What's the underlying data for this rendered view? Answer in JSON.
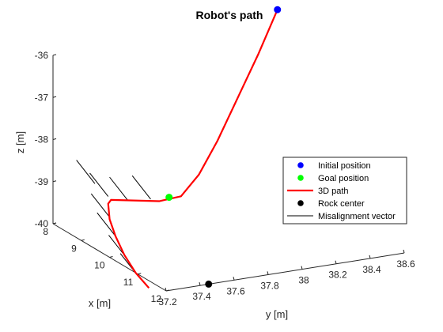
{
  "chart_data": {
    "type": "line3d",
    "title": "Robot's path",
    "xlabel": "x [m]",
    "ylabel": "y [m]",
    "zlabel": "z [m]",
    "xlim": [
      8,
      12
    ],
    "ylim": [
      37.2,
      38.6
    ],
    "zlim": [
      -40,
      -36
    ],
    "x_ticks": [
      "8",
      "9",
      "10",
      "11",
      "12"
    ],
    "y_ticks": [
      "37.2",
      "37.4",
      "37.6",
      "37.8",
      "38",
      "38.2",
      "38.4",
      "38.6"
    ],
    "z_ticks": [
      "-36",
      "-37",
      "-38",
      "-39",
      "-40"
    ],
    "grid": false,
    "legend_position": "right",
    "legend": [
      {
        "label": "Initial position",
        "marker": "dot",
        "color": "#0000ff"
      },
      {
        "label": "Goal position",
        "marker": "dot",
        "color": "#00ff00"
      },
      {
        "label": "3D path",
        "marker": "line",
        "color": "#ff0000"
      },
      {
        "label": "Rock center",
        "marker": "dot",
        "color": "#000000"
      },
      {
        "label": "Misalignment vector",
        "marker": "thinline",
        "color": "#000000"
      }
    ],
    "initial_position": {
      "x": 8.72,
      "y": 38.4,
      "z": -35.4
    },
    "goal_position": {
      "x": 10.0,
      "y": 37.55,
      "z": -38.8
    },
    "rock_center": {
      "x": 12.0,
      "y": 37.45,
      "z": -40
    },
    "path": {
      "name": "3D path",
      "color": "#ff0000",
      "points": [
        {
          "x": 8.72,
          "y": 38.4,
          "z": -35.4
        },
        {
          "x": 9.0,
          "y": 38.24,
          "z": -36.25
        },
        {
          "x": 9.3,
          "y": 38.07,
          "z": -37.05
        },
        {
          "x": 9.6,
          "y": 37.9,
          "z": -37.85
        },
        {
          "x": 9.85,
          "y": 37.75,
          "z": -38.45
        },
        {
          "x": 10.0,
          "y": 37.62,
          "z": -38.82
        },
        {
          "x": 9.95,
          "y": 37.5,
          "z": -38.88
        },
        {
          "x": 9.45,
          "y": 37.3,
          "z": -38.92
        },
        {
          "x": 9.35,
          "y": 37.3,
          "z": -39.05
        },
        {
          "x": 9.4,
          "y": 37.3,
          "z": -39.4
        },
        {
          "x": 9.55,
          "y": 37.31,
          "z": -39.75
        },
        {
          "x": 9.8,
          "y": 37.32,
          "z": -40.1
        },
        {
          "x": 10.15,
          "y": 37.33,
          "z": -40.4
        },
        {
          "x": 10.55,
          "y": 37.34,
          "z": -40.6
        }
      ]
    },
    "misalignment_vectors": [
      {
        "x": 9.0,
        "y": 37.28,
        "z": -38.7,
        "dx": -0.35,
        "dy": -0.05,
        "dz": 0.45
      },
      {
        "x": 9.35,
        "y": 37.3,
        "z": -38.88,
        "dx": -0.35,
        "dy": -0.05,
        "dz": 0.45
      },
      {
        "x": 9.75,
        "y": 37.35,
        "z": -38.85,
        "dx": -0.35,
        "dy": -0.05,
        "dz": 0.45
      },
      {
        "x": 9.95,
        "y": 37.45,
        "z": -38.8,
        "dx": -0.35,
        "dy": -0.05,
        "dz": 0.45
      },
      {
        "x": 9.4,
        "y": 37.3,
        "z": -39.35,
        "dx": -0.35,
        "dy": -0.05,
        "dz": 0.45
      },
      {
        "x": 9.55,
        "y": 37.31,
        "z": -39.75,
        "dx": -0.35,
        "dy": -0.05,
        "dz": 0.45
      },
      {
        "x": 9.9,
        "y": 37.32,
        "z": -40.15,
        "dx": -0.35,
        "dy": -0.05,
        "dz": 0.45
      },
      {
        "x": 10.25,
        "y": 37.33,
        "z": -40.45,
        "dx": -0.35,
        "dy": -0.05,
        "dz": 0.45
      }
    ]
  }
}
